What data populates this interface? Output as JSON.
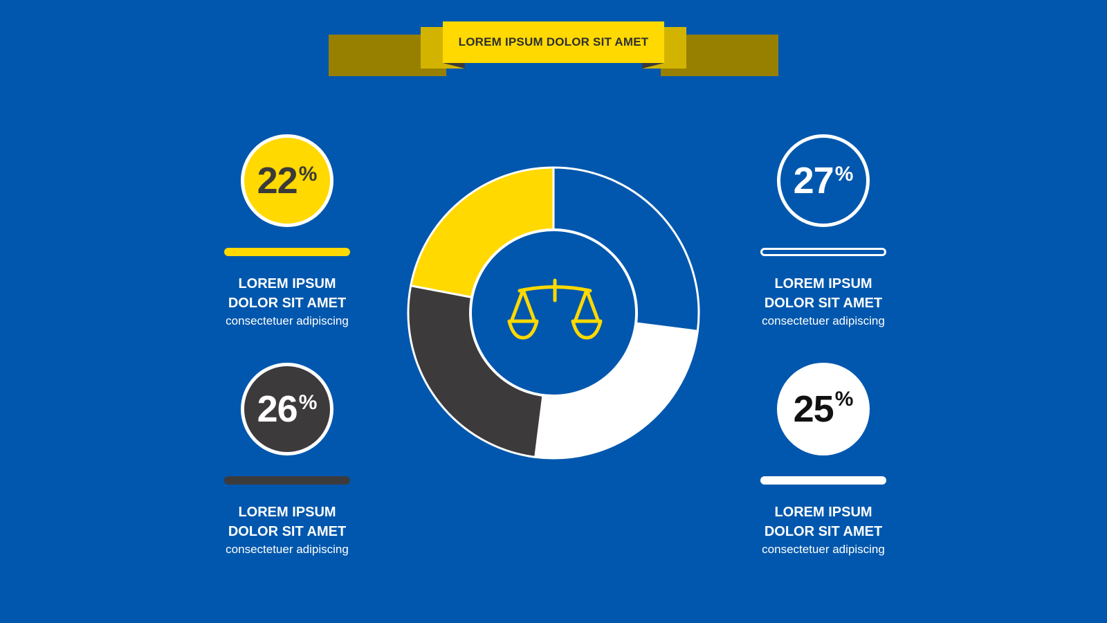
{
  "banner": {
    "title": "LOREM IPSUM DOLOR SIT AMET"
  },
  "colors": {
    "background": "#0057ad",
    "yellow": "#ffd900",
    "dark": "#3d3a3b",
    "white": "#ffffff"
  },
  "center_icon": "balance-scale-icon",
  "stats": [
    {
      "value": "22",
      "symbol": "%",
      "heading_line1": "LOREM IPSUM",
      "heading_line2": "DOLOR SIT AMET",
      "subtext": "consectetuer adipiscing"
    },
    {
      "value": "27",
      "symbol": "%",
      "heading_line1": "LOREM IPSUM",
      "heading_line2": "DOLOR SIT AMET",
      "subtext": "consectetuer adipiscing"
    },
    {
      "value": "26",
      "symbol": "%",
      "heading_line1": "LOREM IPSUM",
      "heading_line2": "DOLOR SIT AMET",
      "subtext": "consectetuer adipiscing"
    },
    {
      "value": "25",
      "symbol": "%",
      "heading_line1": "LOREM IPSUM",
      "heading_line2": "DOLOR SIT AMET",
      "subtext": "consectetuer adipiscing"
    }
  ],
  "chart_data": {
    "type": "pie",
    "variant": "donut",
    "title": "",
    "legend": "none",
    "slices": [
      {
        "value": 27,
        "color": "#0057ad"
      },
      {
        "value": 25,
        "color": "#ffffff"
      },
      {
        "value": 26,
        "color": "#3d3a3b"
      },
      {
        "value": 22,
        "color": "#ffd900"
      }
    ]
  }
}
